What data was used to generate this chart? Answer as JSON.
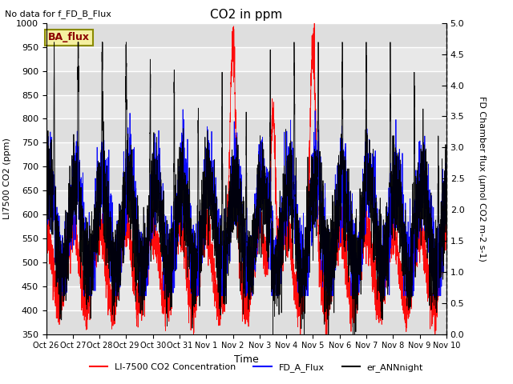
{
  "title": "CO2 in ppm",
  "top_left_text": "No data for f_FD_B_Flux",
  "box_label": "BA_flux",
  "xlabel": "Time",
  "ylabel_left": "LI7500 CO2 (ppm)",
  "ylabel_right": "FD Chamber flux (μmol CO2 m-2 s-1)",
  "ylim_left": [
    350,
    1000
  ],
  "ylim_right": [
    0.0,
    5.0
  ],
  "legend": [
    "LI-7500 CO2 Concentration",
    "FD_A_Flux",
    "er_ANNnight"
  ],
  "line_colors": [
    "red",
    "blue",
    "black"
  ],
  "bg_color": "#e8e8e8",
  "xtick_labels": [
    "Oct 26",
    "Oct 27",
    "Oct 28",
    "Oct 29",
    "Oct 30",
    "Oct 31",
    "Nov 1",
    "Nov 2",
    "Nov 3",
    "Nov 4",
    "Nov 5",
    "Nov 6",
    "Nov 7",
    "Nov 8",
    "Nov 9",
    "Nov 10"
  ],
  "yticks_left": [
    350,
    400,
    450,
    500,
    550,
    600,
    650,
    700,
    750,
    800,
    850,
    900,
    950,
    1000
  ],
  "yticks_right": [
    0.0,
    0.5,
    1.0,
    1.5,
    2.0,
    2.5,
    3.0,
    3.5,
    4.0,
    4.5,
    5.0
  ],
  "n_days": 15,
  "samples_per_day": 288
}
